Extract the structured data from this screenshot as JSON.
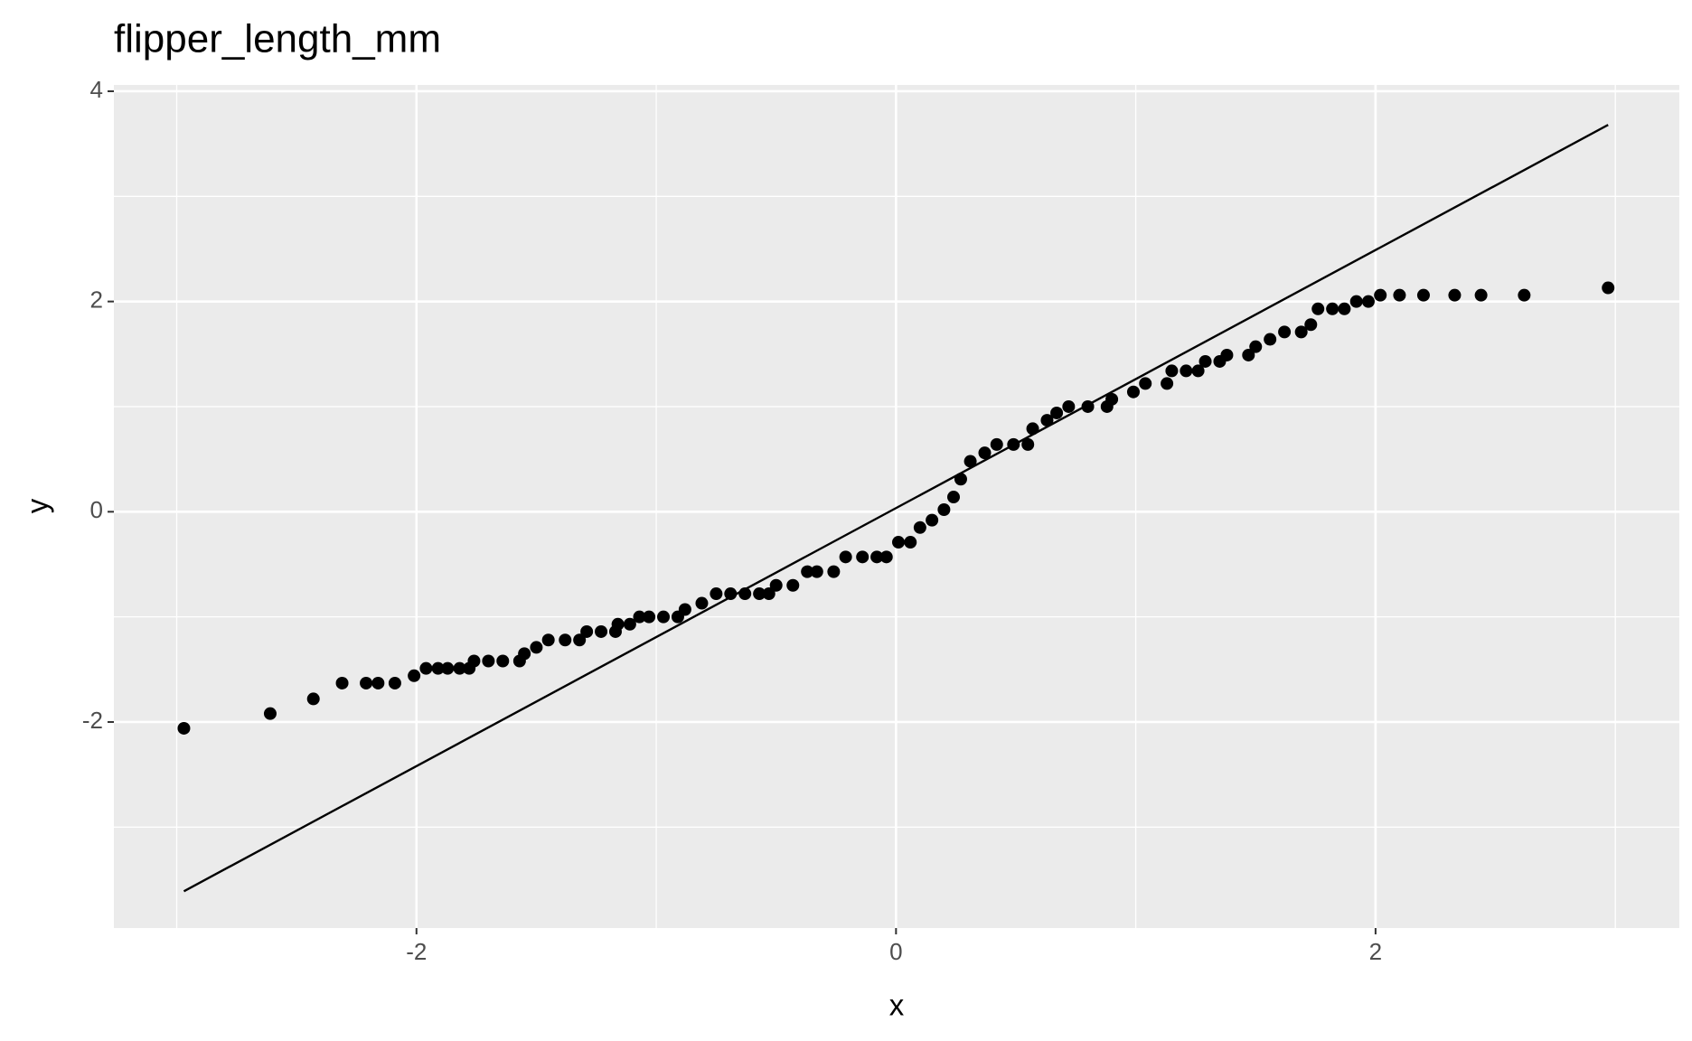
{
  "chart_data": {
    "type": "scatter",
    "title": "flipper_length_mm",
    "x_label": "x",
    "y_label": "y",
    "xlim": [
      -3.262,
      3.267
    ],
    "ylim": [
      -3.96,
      4.06
    ],
    "xticks": [
      -2,
      0,
      2
    ],
    "yticks": [
      -2,
      0,
      2,
      4
    ],
    "grid": true,
    "series": [
      {
        "color": "#000000",
        "x": [
          -2.97,
          -2.61,
          -2.43,
          -2.31,
          -2.21,
          -2.16,
          -2.09,
          -2.01,
          -1.96,
          -1.91,
          -1.87,
          -1.82,
          -1.78,
          -1.76,
          -1.7,
          -1.64,
          -1.57,
          -1.55,
          -1.5,
          -1.45,
          -1.38,
          -1.32,
          -1.29,
          -1.23,
          -1.17,
          -1.16,
          -1.11,
          -1.07,
          -1.03,
          -0.97,
          -0.91,
          -0.88,
          -0.81,
          -0.75,
          -0.69,
          -0.63,
          -0.57,
          -0.53,
          -0.5,
          -0.43,
          -0.37,
          -0.33,
          -0.26,
          -0.21,
          -0.14,
          -0.08,
          -0.04,
          0.01,
          0.06,
          0.1,
          0.15,
          0.2,
          0.24,
          0.27,
          0.31,
          0.37,
          0.42,
          0.49,
          0.55,
          0.57,
          0.63,
          0.67,
          0.72,
          0.8,
          0.88,
          0.9,
          0.99,
          1.04,
          1.13,
          1.15,
          1.21,
          1.26,
          1.29,
          1.35,
          1.38,
          1.47,
          1.5,
          1.56,
          1.62,
          1.69,
          1.73,
          1.76,
          1.82,
          1.87,
          1.92,
          1.97,
          2.02,
          2.1,
          2.2,
          2.33,
          2.44,
          2.62,
          2.97
        ],
        "y": [
          -2.06,
          -1.92,
          -1.78,
          -1.63,
          -1.63,
          -1.63,
          -1.63,
          -1.56,
          -1.49,
          -1.49,
          -1.49,
          -1.49,
          -1.49,
          -1.42,
          -1.42,
          -1.42,
          -1.42,
          -1.35,
          -1.29,
          -1.22,
          -1.22,
          -1.22,
          -1.14,
          -1.14,
          -1.14,
          -1.07,
          -1.07,
          -1.0,
          -1.0,
          -1.0,
          -1.0,
          -0.93,
          -0.87,
          -0.78,
          -0.78,
          -0.78,
          -0.78,
          -0.78,
          -0.7,
          -0.7,
          -0.57,
          -0.57,
          -0.57,
          -0.43,
          -0.43,
          -0.43,
          -0.43,
          -0.29,
          -0.29,
          -0.15,
          -0.08,
          0.02,
          0.14,
          0.31,
          0.48,
          0.56,
          0.64,
          0.64,
          0.64,
          0.79,
          0.87,
          0.94,
          1.0,
          1.0,
          1.0,
          1.07,
          1.14,
          1.22,
          1.22,
          1.34,
          1.34,
          1.34,
          1.43,
          1.43,
          1.49,
          1.49,
          1.57,
          1.64,
          1.71,
          1.71,
          1.78,
          1.93,
          1.93,
          1.93,
          2.0,
          2.0,
          2.06,
          2.06,
          2.06,
          2.06,
          2.06,
          2.06,
          2.13
        ]
      }
    ],
    "reference_line": {
      "x": [
        -2.97,
        2.97
      ],
      "y": [
        -3.61,
        3.68
      ]
    }
  }
}
